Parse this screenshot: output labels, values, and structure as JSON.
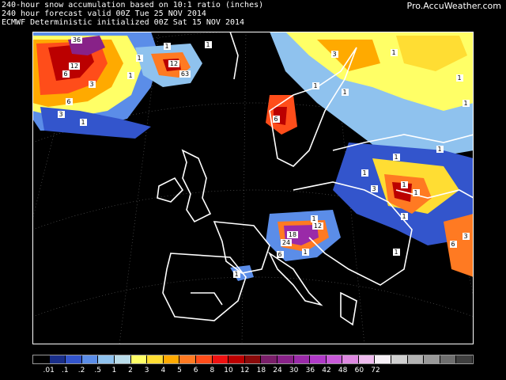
{
  "header": {
    "line1": "240-hour snow accumulation based on 10:1 ratio (inches)",
    "line2": "240 hour forecast valid 00Z Tue 25 NOV 2014",
    "line3": "ECMWF Deterministic initialized 00Z Sat 15 NOV 2014",
    "credit": "Pro.AccuWeather.com"
  },
  "legend": {
    "colors": [
      "#000000",
      "#1a2f8a",
      "#3355cc",
      "#5b8de8",
      "#8fc2ee",
      "#b9dcea",
      "#ffff66",
      "#ffdd33",
      "#ffaa00",
      "#ff7a22",
      "#ff4d1a",
      "#ee1111",
      "#bb0000",
      "#8a0a0a",
      "#7a1f6a",
      "#882288",
      "#9a2aa8",
      "#b03ac8",
      "#c85ad8",
      "#dd88e0",
      "#eebbee",
      "#f6f0f6",
      "#d0d0d0",
      "#b3b3b3",
      "#999999",
      "#6e6e6e",
      "#3f3f3f"
    ],
    "labels": [
      ".01",
      ".1",
      ".2",
      ".5",
      "1",
      "2",
      "3",
      "4",
      "5",
      "6",
      "8",
      "10",
      "12",
      "18",
      "24",
      "30",
      "36",
      "42",
      "48",
      "60",
      "72"
    ]
  },
  "map_labels": [
    "36",
    "12",
    "6",
    "3",
    "1",
    "6",
    "3",
    "1",
    "12",
    "63",
    "1",
    "1",
    "1",
    "3",
    "6",
    "1",
    "1",
    "1",
    "1",
    "1",
    "1",
    "1",
    "3",
    "1",
    "1",
    "1",
    "3",
    "6",
    "1",
    "1",
    "12",
    "18",
    "24",
    "6",
    "1",
    "1",
    "1"
  ],
  "icons": {
    "border_lines": "coastline-and-border-lines",
    "lat_lon_grid": "lat-lon-grid-dashed"
  }
}
